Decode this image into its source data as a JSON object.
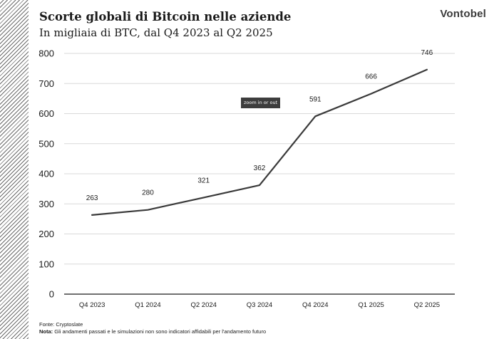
{
  "brand": "Vontobel",
  "tooltip": "zoom in or out",
  "footer": {
    "source": "Fonte: Cryptoslate",
    "note_label": "Nota:",
    "note_text": "Gli andamenti passati e le simulazioni non sono indicatori affidabili per l'andamento futuro"
  },
  "chart_data": {
    "type": "line",
    "title": "Scorte globali di Bitcoin nelle aziende",
    "subtitle": "In migliaia di BTC, dal Q4 2023 al Q2 2025",
    "categories": [
      "Q4 2023",
      "Q1 2024",
      "Q2 2024",
      "Q3 2024",
      "Q4 2024",
      "Q1 2025",
      "Q2 2025"
    ],
    "values": [
      263,
      280,
      321,
      362,
      591,
      666,
      746
    ],
    "data_labels": [
      "263",
      "280",
      "321",
      "362",
      "591",
      "666",
      "746"
    ],
    "ylim": [
      0,
      800
    ],
    "yticks": [
      0,
      100,
      200,
      300,
      400,
      500,
      600,
      700,
      800
    ],
    "xlabel": "",
    "ylabel": "",
    "grid": true,
    "line_color": "#3a3a3a",
    "grid_color": "#d9d9d9"
  }
}
